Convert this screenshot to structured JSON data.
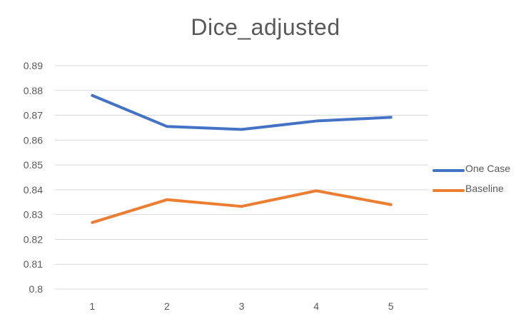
{
  "chart_data": {
    "type": "line",
    "title": "Dice_adjusted",
    "categories": [
      "1",
      "2",
      "3",
      "4",
      "5"
    ],
    "series": [
      {
        "name": "One Case",
        "color": "#4472C4",
        "values": [
          0.878,
          0.8655,
          0.8643,
          0.8677,
          0.8692
        ]
      },
      {
        "name": "Baseline",
        "color": "#ED7D31",
        "values": [
          0.8268,
          0.836,
          0.8333,
          0.8396,
          0.834
        ]
      }
    ],
    "ylim": [
      0.8,
      0.89
    ],
    "yticks": [
      "0.8",
      "0.81",
      "0.82",
      "0.83",
      "0.84",
      "0.85",
      "0.86",
      "0.87",
      "0.88",
      "0.89"
    ],
    "grid": true,
    "legend_position": "right"
  }
}
